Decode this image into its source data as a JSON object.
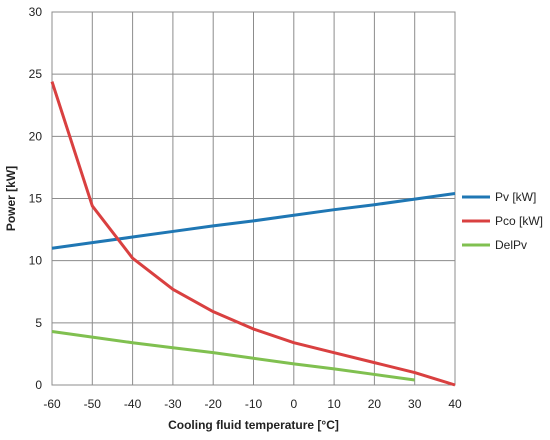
{
  "chart_data": {
    "type": "line",
    "title": "",
    "xlabel": "Cooling fluid temperature [°C]",
    "ylabel": "Power [kW]",
    "xlim": [
      -60,
      40
    ],
    "ylim": [
      0,
      30
    ],
    "x_ticks": [
      -60,
      -50,
      -40,
      -30,
      -20,
      -10,
      0,
      10,
      20,
      30,
      40
    ],
    "y_ticks": [
      0,
      5,
      10,
      15,
      20,
      25,
      30
    ],
    "grid": true,
    "legend_position": "right",
    "series": [
      {
        "name": "Pv [kW]",
        "color": "#1f77b4",
        "x": [
          -60,
          -50,
          -40,
          -30,
          -20,
          -10,
          0,
          10,
          20,
          30,
          40
        ],
        "y": [
          11.0,
          11.45,
          11.9,
          12.35,
          12.8,
          13.2,
          13.65,
          14.1,
          14.5,
          14.95,
          15.4
        ]
      },
      {
        "name": "Pco [kW]",
        "color": "#d94040",
        "x": [
          -60,
          -50,
          -40,
          -30,
          -20,
          -10,
          0,
          10,
          20,
          30,
          40
        ],
        "y": [
          24.4,
          14.4,
          10.2,
          7.7,
          5.9,
          4.5,
          3.4,
          2.6,
          1.8,
          1.0,
          0.0
        ]
      },
      {
        "name": "DelPv",
        "color": "#80c050",
        "x": [
          -60,
          -50,
          -40,
          -30,
          -20,
          -10,
          0,
          10,
          20,
          30
        ],
        "y": [
          4.3,
          3.85,
          3.4,
          3.0,
          2.6,
          2.15,
          1.7,
          1.3,
          0.85,
          0.4
        ]
      }
    ]
  }
}
